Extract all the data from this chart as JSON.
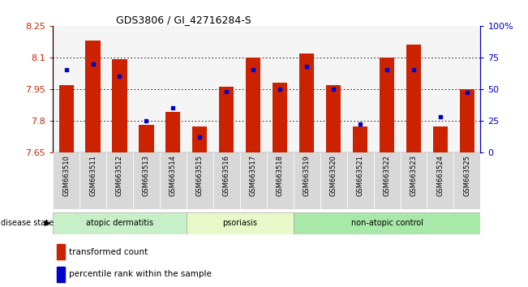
{
  "title": "GDS3806 / GI_42716284-S",
  "samples": [
    "GSM663510",
    "GSM663511",
    "GSM663512",
    "GSM663513",
    "GSM663514",
    "GSM663515",
    "GSM663516",
    "GSM663517",
    "GSM663518",
    "GSM663519",
    "GSM663520",
    "GSM663521",
    "GSM663522",
    "GSM663523",
    "GSM663524",
    "GSM663525"
  ],
  "red_values": [
    7.97,
    8.18,
    8.09,
    7.78,
    7.84,
    7.77,
    7.96,
    8.1,
    7.98,
    8.12,
    7.97,
    7.77,
    8.1,
    8.16,
    7.77,
    7.95
  ],
  "blue_values": [
    65,
    70,
    60,
    25,
    35,
    12,
    48,
    65,
    50,
    68,
    50,
    22,
    65,
    65,
    28,
    47
  ],
  "ymin": 7.65,
  "ymax": 8.25,
  "yticks": [
    7.65,
    7.8,
    7.95,
    8.1,
    8.25
  ],
  "ytick_labels": [
    "7.65",
    "7.8",
    "7.95",
    "8.1",
    "8.25"
  ],
  "right_yticks": [
    0,
    25,
    50,
    75,
    100
  ],
  "right_ytick_labels": [
    "0",
    "25",
    "50",
    "75",
    "100%"
  ],
  "bar_color": "#cc2200",
  "dot_color": "#0000cc",
  "groups": [
    {
      "label": "atopic dermatitis",
      "start": 0,
      "end": 5,
      "color": "#c8f0c8"
    },
    {
      "label": "psoriasis",
      "start": 5,
      "end": 9,
      "color": "#e8f8c8"
    },
    {
      "label": "non-atopic control",
      "start": 9,
      "end": 16,
      "color": "#a8e8a8"
    }
  ],
  "legend_red": "transformed count",
  "legend_blue": "percentile rank within the sample",
  "disease_state_label": "disease state",
  "background_color": "#ffffff",
  "bar_bottom": 7.65,
  "bar_width": 0.55
}
